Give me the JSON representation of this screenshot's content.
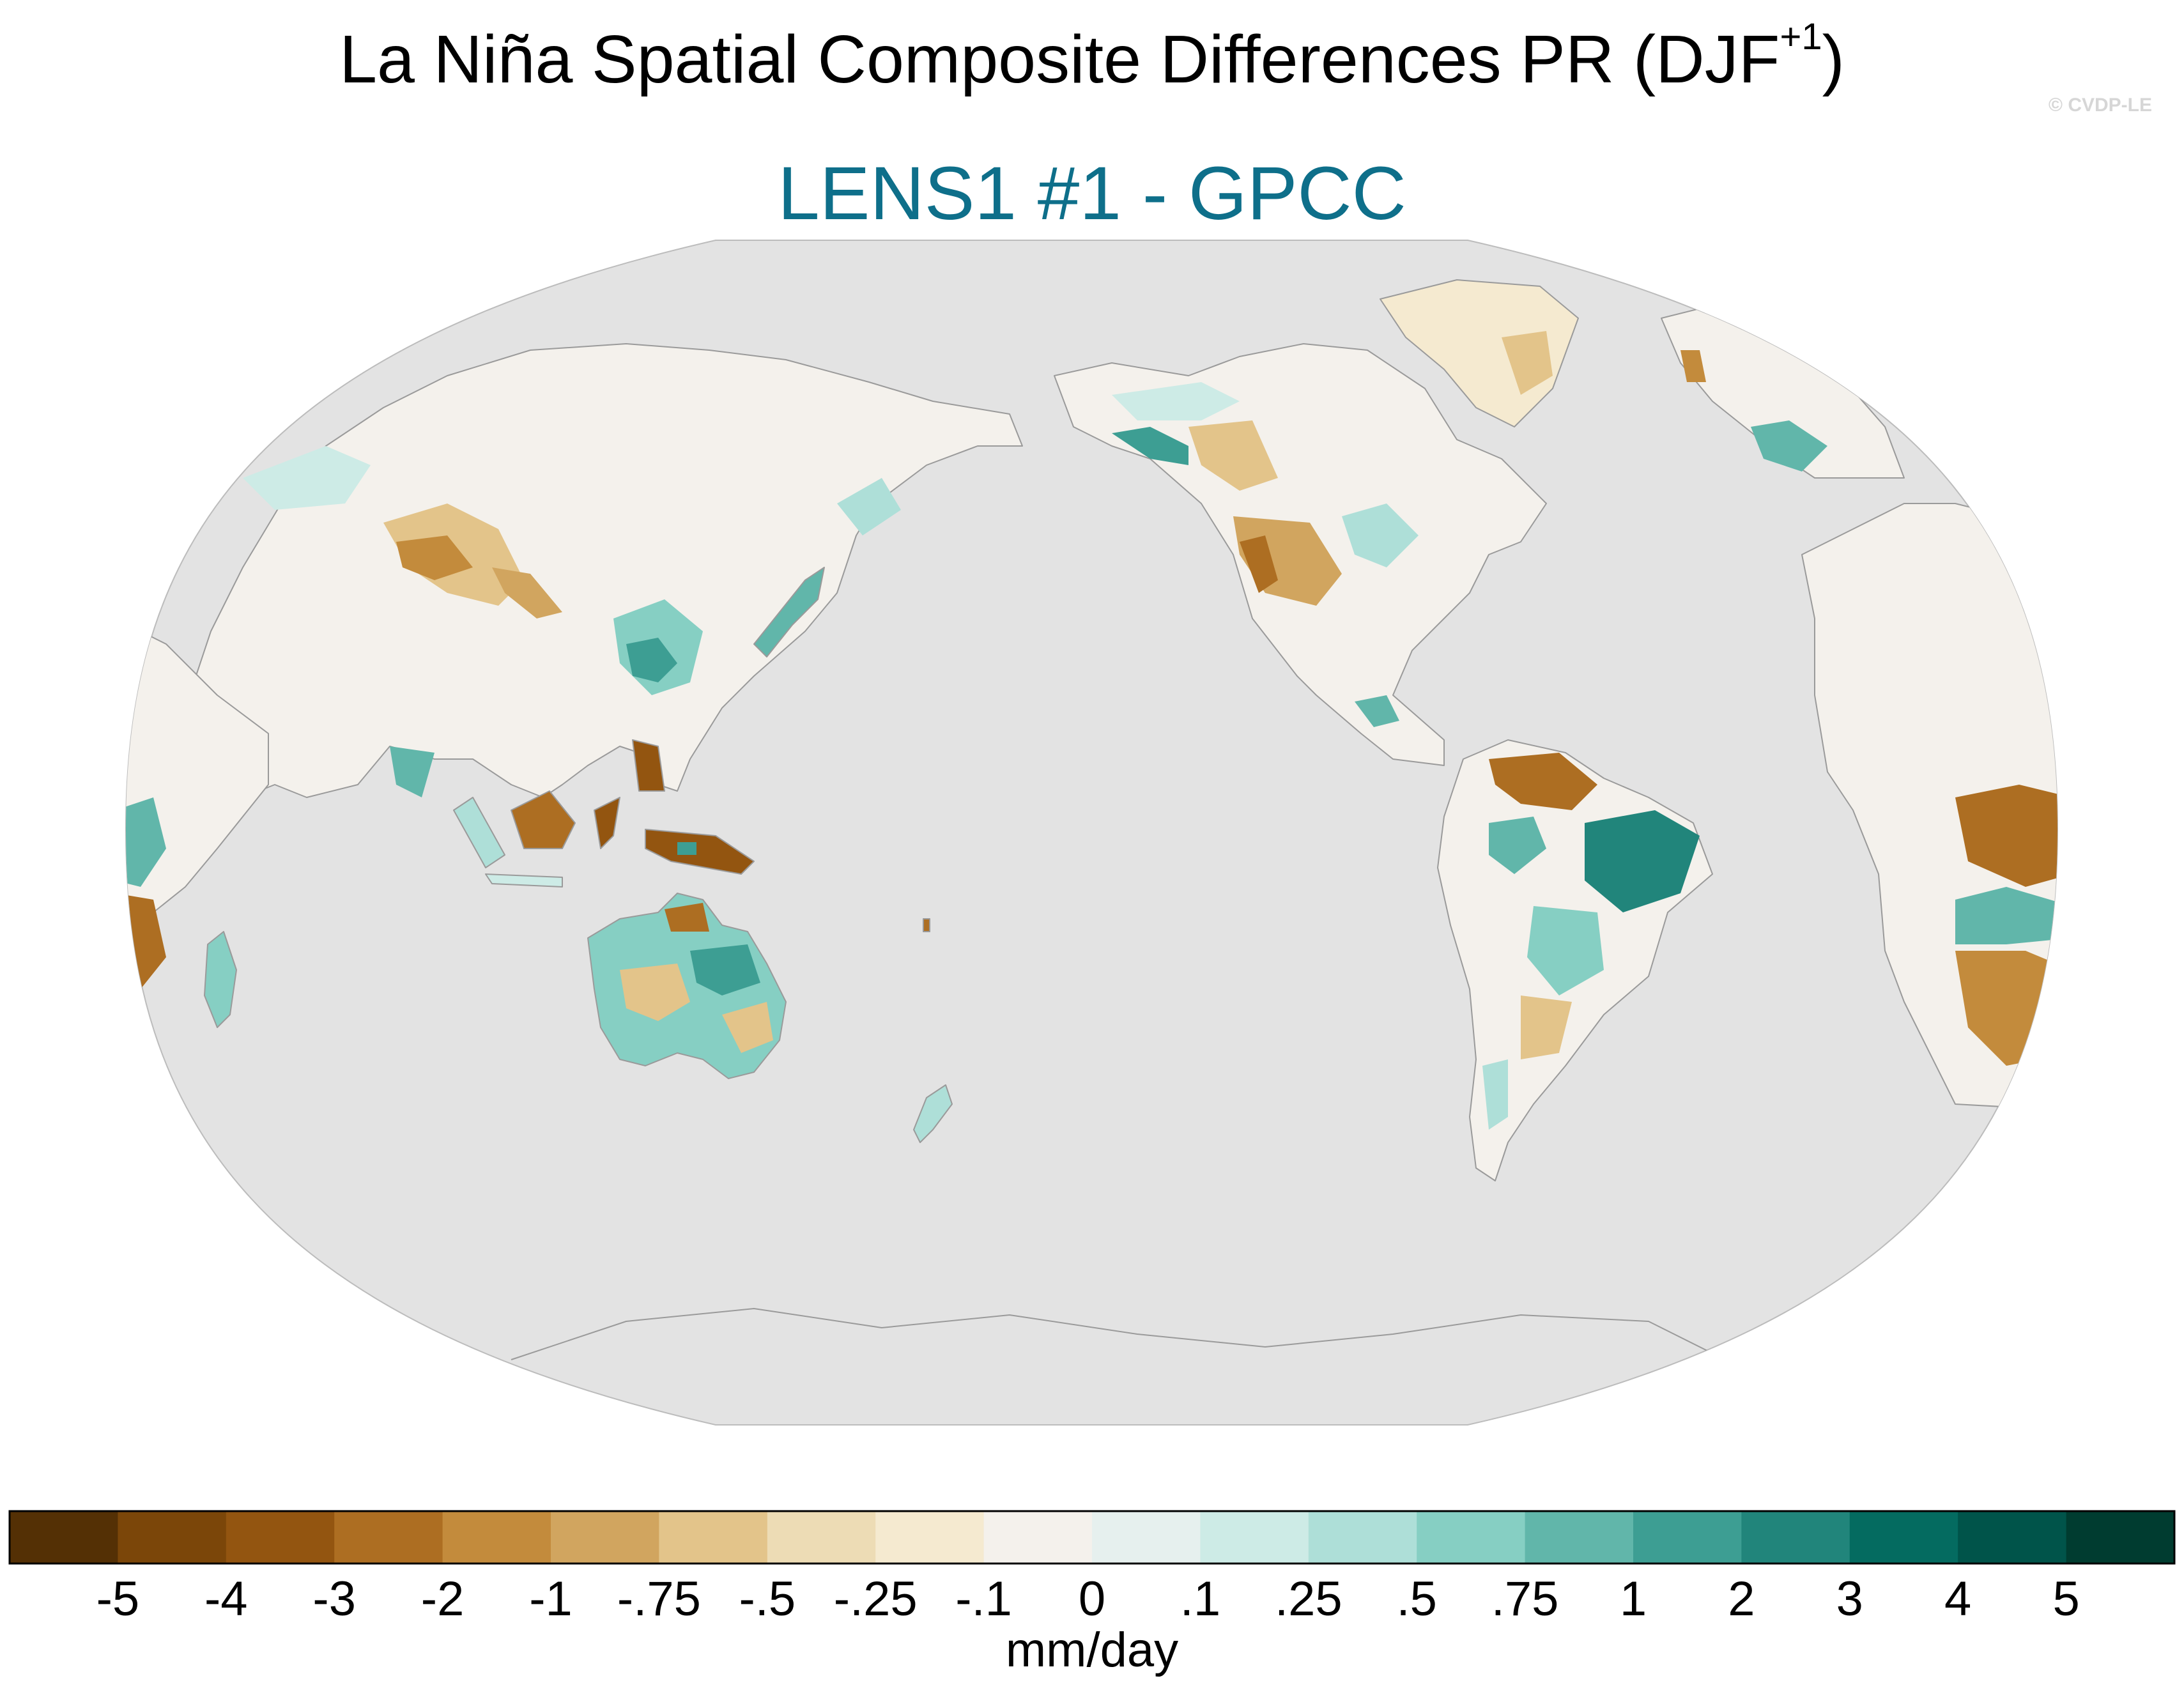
{
  "title": {
    "main": "La Niña Spatial Composite Differences PR (DJF",
    "superscript": "+1",
    "close": ")"
  },
  "subtitle": "LENS1 #1 - GPCC",
  "credit": "© CVDP-LE",
  "colors": {
    "subtitle": "#0e6f8a",
    "ocean": "#e3e3e3",
    "coastline": "#9a9a9a"
  },
  "colorbar": {
    "units": "mm/day",
    "tick_labels": [
      "-5",
      "-4",
      "-3",
      "-2",
      "-1",
      "-.75",
      "-.5",
      "-.25",
      "-.1",
      "0",
      ".1",
      ".25",
      ".5",
      ".75",
      "1",
      "2",
      "3",
      "4",
      "5"
    ],
    "colors": [
      "#543005",
      "#7b4609",
      "#935510",
      "#ad6e22",
      "#c38b3c",
      "#d1a55f",
      "#e3c48a",
      "#eddcb5",
      "#f5ead0",
      "#f4f1ec",
      "#e6f0ee",
      "#cdebe6",
      "#aedfd8",
      "#86cfc3",
      "#61b6aa",
      "#3d9e93",
      "#21857b",
      "#046b60",
      "#00544a",
      "#003c30"
    ]
  },
  "map": {
    "projection": "Robinson, centered on the Pacific",
    "features": [
      {
        "region": "Australia",
        "category": ".5"
      },
      {
        "region": "Northeast South America",
        "category": "2"
      },
      {
        "region": "Southern Africa",
        "category": "-2"
      },
      {
        "region": "Maritime Continent",
        "category": "-3"
      },
      {
        "region": "Southern United States",
        "category": "-.5"
      },
      {
        "region": "Alaska coast",
        "category": "1"
      },
      {
        "region": "Southeast China",
        "category": "1"
      },
      {
        "region": "Japan",
        "category": ".75"
      },
      {
        "region": "Siberia",
        "category": "0"
      },
      {
        "region": "Sahara",
        "category": "0"
      }
    ]
  }
}
